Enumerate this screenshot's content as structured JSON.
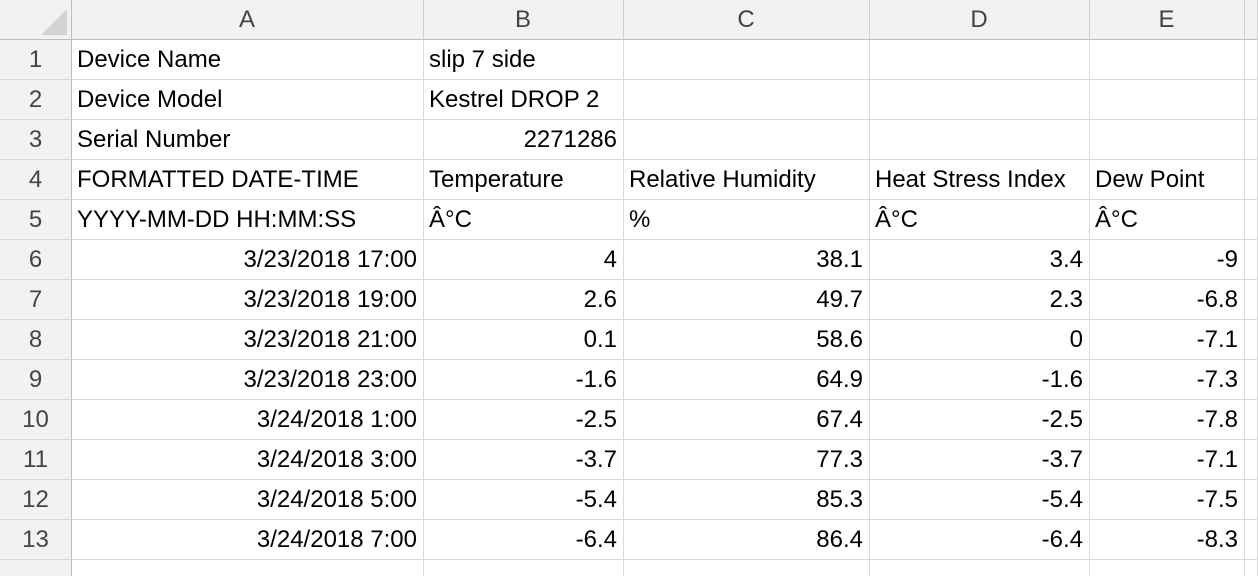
{
  "columns": [
    "A",
    "B",
    "C",
    "D",
    "E"
  ],
  "rows": [
    {
      "num": "1",
      "cells": [
        "Device Name",
        "slip 7 side",
        "",
        "",
        ""
      ]
    },
    {
      "num": "2",
      "cells": [
        "Device Model",
        "Kestrel DROP 2",
        "",
        "",
        ""
      ]
    },
    {
      "num": "3",
      "cells": [
        "Serial Number",
        "2271286",
        "",
        "",
        ""
      ]
    },
    {
      "num": "4",
      "cells": [
        "FORMATTED DATE-TIME",
        "Temperature",
        "Relative Humidity",
        "Heat Stress Index",
        "Dew Point"
      ]
    },
    {
      "num": "5",
      "cells": [
        "YYYY-MM-DD HH:MM:SS",
        "Â°C",
        "%",
        "Â°C",
        "Â°C"
      ]
    },
    {
      "num": "6",
      "cells": [
        "3/23/2018 17:00",
        "4",
        "38.1",
        "3.4",
        "-9"
      ]
    },
    {
      "num": "7",
      "cells": [
        "3/23/2018 19:00",
        "2.6",
        "49.7",
        "2.3",
        "-6.8"
      ]
    },
    {
      "num": "8",
      "cells": [
        "3/23/2018 21:00",
        "0.1",
        "58.6",
        "0",
        "-7.1"
      ]
    },
    {
      "num": "9",
      "cells": [
        "3/23/2018 23:00",
        "-1.6",
        "64.9",
        "-1.6",
        "-7.3"
      ]
    },
    {
      "num": "10",
      "cells": [
        "3/24/2018 1:00",
        "-2.5",
        "67.4",
        "-2.5",
        "-7.8"
      ]
    },
    {
      "num": "11",
      "cells": [
        "3/24/2018 3:00",
        "-3.7",
        "77.3",
        "-3.7",
        "-7.1"
      ]
    },
    {
      "num": "12",
      "cells": [
        "3/24/2018 5:00",
        "-5.4",
        "85.3",
        "-5.4",
        "-7.5"
      ]
    },
    {
      "num": "13",
      "cells": [
        "3/24/2018 7:00",
        "-6.4",
        "86.4",
        "-6.4",
        "-8.3"
      ]
    },
    {
      "num": "",
      "cells": [
        "",
        "",
        "",
        "",
        ""
      ]
    }
  ],
  "align": [
    [
      "txt",
      "txt",
      "txt",
      "txt",
      "txt"
    ],
    [
      "txt",
      "txt",
      "txt",
      "txt",
      "txt"
    ],
    [
      "txt",
      "num",
      "txt",
      "txt",
      "txt"
    ],
    [
      "txt",
      "txt",
      "txt",
      "txt",
      "txt"
    ],
    [
      "txt",
      "txt",
      "txt",
      "txt",
      "txt"
    ],
    [
      "num",
      "num",
      "num",
      "num",
      "num"
    ],
    [
      "num",
      "num",
      "num",
      "num",
      "num"
    ],
    [
      "num",
      "num",
      "num",
      "num",
      "num"
    ],
    [
      "num",
      "num",
      "num",
      "num",
      "num"
    ],
    [
      "num",
      "num",
      "num",
      "num",
      "num"
    ],
    [
      "num",
      "num",
      "num",
      "num",
      "num"
    ],
    [
      "num",
      "num",
      "num",
      "num",
      "num"
    ],
    [
      "num",
      "num",
      "num",
      "num",
      "num"
    ],
    [
      "txt",
      "txt",
      "txt",
      "txt",
      "txt"
    ]
  ],
  "icons": {
    "select_all": "select-all-triangle-icon"
  }
}
